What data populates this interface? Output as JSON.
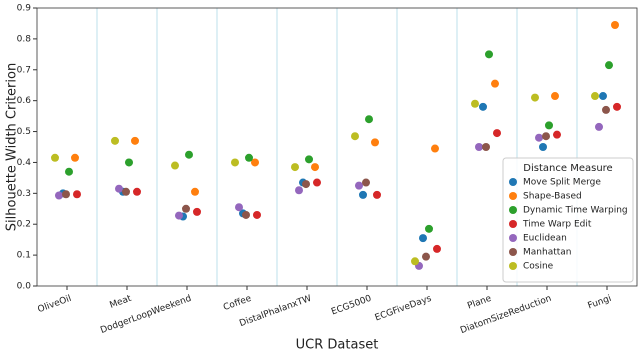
{
  "chart_data": {
    "type": "strip",
    "x_label": "UCR Dataset",
    "y_label": "Silhouette Width Criterion",
    "categories": [
      "OliveOil",
      "Meat",
      "DodgerLoopWeekend",
      "Coffee",
      "DistalPhalanxTW",
      "ECG5000",
      "ECGFiveDays",
      "Plane",
      "DiatomSizeReduction",
      "Fungi"
    ],
    "ylim": [
      0,
      0.9
    ],
    "yticks": [
      {
        "value": 0,
        "label": "0.0"
      },
      0.1,
      0.2,
      0.3,
      0.4,
      0.5,
      0.6,
      0.7,
      0.8,
      0.9
    ],
    "legend_title": "Distance Measure",
    "legend": "lower right",
    "series": [
      {
        "name": "Move Split Merge",
        "color": "#1f77b4",
        "values": [
          0.3,
          0.305,
          0.225,
          0.235,
          0.335,
          0.295,
          0.155,
          0.58,
          0.45,
          0.615
        ]
      },
      {
        "name": "Shape-Based",
        "color": "#ff7f0e",
        "values": [
          0.415,
          0.47,
          0.305,
          0.4,
          0.385,
          0.465,
          0.445,
          0.655,
          0.615,
          0.845
        ]
      },
      {
        "name": "Dynamic Time Warping",
        "color": "#2ca02c",
        "values": [
          0.37,
          0.4,
          0.425,
          0.415,
          0.41,
          0.54,
          0.185,
          0.75,
          0.52,
          0.715
        ]
      },
      {
        "name": "Time Warp Edit",
        "color": "#d62728",
        "values": [
          0.297,
          0.305,
          0.24,
          0.23,
          0.335,
          0.295,
          0.12,
          0.495,
          0.49,
          0.58
        ]
      },
      {
        "name": "Euclidean",
        "color": "#9467bd",
        "values": [
          0.293,
          0.315,
          0.228,
          0.255,
          0.31,
          0.325,
          0.065,
          0.45,
          0.48,
          0.515
        ]
      },
      {
        "name": "Manhattan",
        "color": "#8c564b",
        "values": [
          0.297,
          0.305,
          0.25,
          0.23,
          0.33,
          0.335,
          0.095,
          0.45,
          0.485,
          0.57
        ]
      },
      {
        "name": "Cosine",
        "color": "#bcbd22",
        "values": [
          0.415,
          0.47,
          0.39,
          0.4,
          0.385,
          0.485,
          0.08,
          0.59,
          0.61,
          0.615
        ]
      }
    ]
  }
}
